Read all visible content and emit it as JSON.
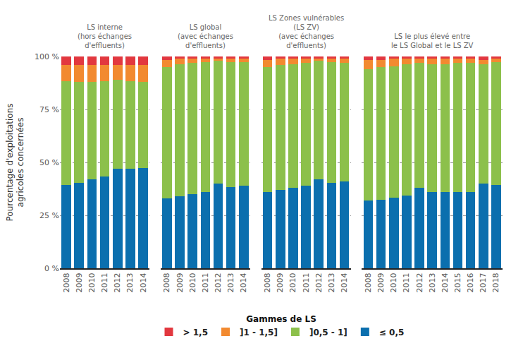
{
  "chart_data": [
    {
      "type": "bar",
      "stacked": true,
      "grid": true,
      "legend": "bottom",
      "title": [
        "LS interne",
        "(hors échanges",
        "d'effluents)"
      ],
      "y_label": [
        "Pourcentage d'exploitations",
        "agricoles concernées"
      ],
      "legend_title": "Gammes de LS",
      "categories": [
        "2008",
        "2009",
        "2010",
        "2011",
        "2012",
        "2013",
        "2014"
      ],
      "ylim": [
        0,
        100
      ],
      "yticks": [
        {
          "value": 0,
          "label": "0 %"
        },
        {
          "value": 25,
          "label": "25 %"
        },
        {
          "value": 50,
          "label": "50 %"
        },
        {
          "value": 75,
          "label": "75 %"
        },
        {
          "value": 100,
          "label": "100 %"
        }
      ],
      "series": [
        {
          "name": "≤ 0,5",
          "color": "#0b6fae",
          "values": [
            39.5,
            40.5,
            42,
            43.5,
            47,
            47,
            47.5
          ]
        },
        {
          "name": "]0,5 - 1]",
          "color": "#8cc04b",
          "values": [
            49,
            47.5,
            46,
            45,
            42,
            41.5,
            40.5
          ]
        },
        {
          "name": "]1 - 1,5]",
          "color": "#f28a30",
          "values": [
            7.5,
            8,
            8,
            7.5,
            7,
            7.5,
            8
          ]
        },
        {
          "name": "> 1,5",
          "color": "#e2383f",
          "values": [
            4,
            4,
            4,
            4,
            4,
            4,
            4
          ]
        }
      ]
    },
    {
      "type": "bar",
      "stacked": true,
      "grid": true,
      "tick_labels": "x",
      "title": [
        "LS global",
        "(avec échanges",
        "d'effluents)"
      ],
      "categories": [
        "2008",
        "2009",
        "2010",
        "2011",
        "2012",
        "2013",
        "2014"
      ],
      "ylim": [
        0,
        100
      ],
      "yticks": [
        0,
        25,
        50,
        75,
        100
      ],
      "series": [
        {
          "name": "≤ 0,5",
          "color": "#0b6fae",
          "values": [
            33,
            34,
            35,
            36,
            40,
            38.5,
            39
          ]
        },
        {
          "name": "]0,5 - 1]",
          "color": "#8cc04b",
          "values": [
            62,
            62.5,
            62,
            61.5,
            58,
            59,
            58.5
          ]
        },
        {
          "name": "]1 - 1,5]",
          "color": "#f28a30",
          "values": [
            3.5,
            2.5,
            2,
            1.5,
            1,
            1.5,
            1.5
          ]
        },
        {
          "name": "> 1,5",
          "color": "#e2383f",
          "values": [
            1.5,
            1,
            1,
            1,
            1,
            1,
            1
          ]
        }
      ]
    },
    {
      "type": "bar",
      "stacked": true,
      "grid": true,
      "tick_labels": "x",
      "title": [
        "LS Zones vulnérables",
        "(LS ZV)",
        "(avec échanges",
        "d'effluents)"
      ],
      "categories": [
        "2008",
        "2009",
        "2010",
        "2011",
        "2012",
        "2013",
        "2014"
      ],
      "ylim": [
        0,
        100
      ],
      "yticks": [
        0,
        25,
        50,
        75,
        100
      ],
      "series": [
        {
          "name": "≤ 0,5",
          "color": "#0b6fae",
          "values": [
            36,
            37,
            38,
            39,
            42,
            40.5,
            41
          ]
        },
        {
          "name": "]0,5 - 1]",
          "color": "#8cc04b",
          "values": [
            59,
            59,
            58.5,
            58,
            56,
            57,
            56
          ]
        },
        {
          "name": "]1 - 1,5]",
          "color": "#f28a30",
          "values": [
            3.5,
            3,
            2.5,
            2,
            1,
            1.5,
            2
          ]
        },
        {
          "name": "> 1,5",
          "color": "#e2383f",
          "values": [
            1.5,
            1,
            1,
            1,
            1,
            1,
            1
          ]
        }
      ]
    },
    {
      "type": "bar",
      "stacked": true,
      "grid": true,
      "tick_labels": "x",
      "title": [
        "LS le plus élevé entre",
        "le LS Global et le LS ZV"
      ],
      "categories": [
        "2008",
        "2009",
        "2010",
        "2011",
        "2012",
        "2013",
        "2014",
        "2015",
        "2016",
        "2017",
        "2018"
      ],
      "ylim": [
        0,
        100
      ],
      "yticks": [
        0,
        25,
        50,
        75,
        100
      ],
      "series": [
        {
          "name": "≤ 0,5",
          "color": "#0b6fae",
          "values": [
            32,
            32.5,
            33.5,
            34.5,
            38,
            36,
            36,
            36,
            36,
            40,
            39.5
          ]
        },
        {
          "name": "]0,5 - 1]",
          "color": "#8cc04b",
          "values": [
            62,
            62.5,
            62,
            62,
            59,
            60.5,
            60.5,
            61,
            61,
            56.5,
            58
          ]
        },
        {
          "name": "]1 - 1,5]",
          "color": "#f28a30",
          "values": [
            4.5,
            3.5,
            3.5,
            2.5,
            2,
            2.5,
            2.5,
            2,
            2,
            2,
            1.5
          ]
        },
        {
          "name": "> 1,5",
          "color": "#e2383f",
          "values": [
            1.5,
            1.5,
            1,
            1,
            1,
            1,
            1,
            1,
            1,
            1.5,
            1
          ]
        }
      ]
    }
  ]
}
